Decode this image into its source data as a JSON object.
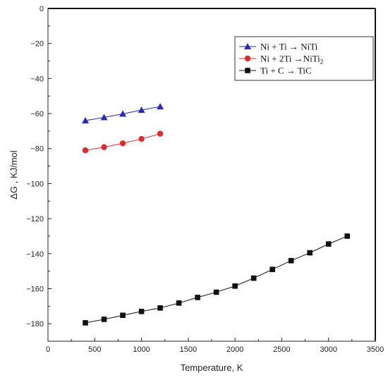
{
  "chart_data": {
    "type": "line",
    "xlabel": "Temperature, K",
    "ylabel": "ΔG , KJ/mol",
    "xlim": [
      0,
      3500
    ],
    "ylim": [
      -190,
      0
    ],
    "xticks": [
      0,
      500,
      1000,
      1500,
      2000,
      2500,
      3000,
      3500
    ],
    "yticks": [
      0,
      -20,
      -40,
      -60,
      -80,
      -100,
      -120,
      -140,
      -160,
      -180
    ],
    "grid": false,
    "legend_position": "top-right",
    "series": [
      {
        "name": "Ni + Ti → NiTi",
        "color": "#2b2ba8",
        "marker": "triangle",
        "x": [
          400,
          600,
          800,
          1000,
          1200
        ],
        "y": [
          -64,
          -62.2,
          -60.2,
          -58,
          -56
        ]
      },
      {
        "name": "Ni + 2Ti →NiTi2",
        "color": "#d62f2f",
        "marker": "circle",
        "x": [
          400,
          600,
          800,
          1000,
          1200
        ],
        "y": [
          -81,
          -79.2,
          -77,
          -74.5,
          -71.5
        ]
      },
      {
        "name": "Ti + C → TiC",
        "color": "#111111",
        "marker": "square",
        "x": [
          400,
          600,
          800,
          1000,
          1200,
          1400,
          1600,
          1800,
          2000,
          2200,
          2400,
          2600,
          2800,
          3000,
          3200
        ],
        "y": [
          -179.5,
          -177.5,
          -175.2,
          -173,
          -171,
          -168.2,
          -165,
          -162,
          -158.5,
          -154,
          -149,
          -144,
          -139.5,
          -134.5,
          -130
        ]
      }
    ]
  }
}
